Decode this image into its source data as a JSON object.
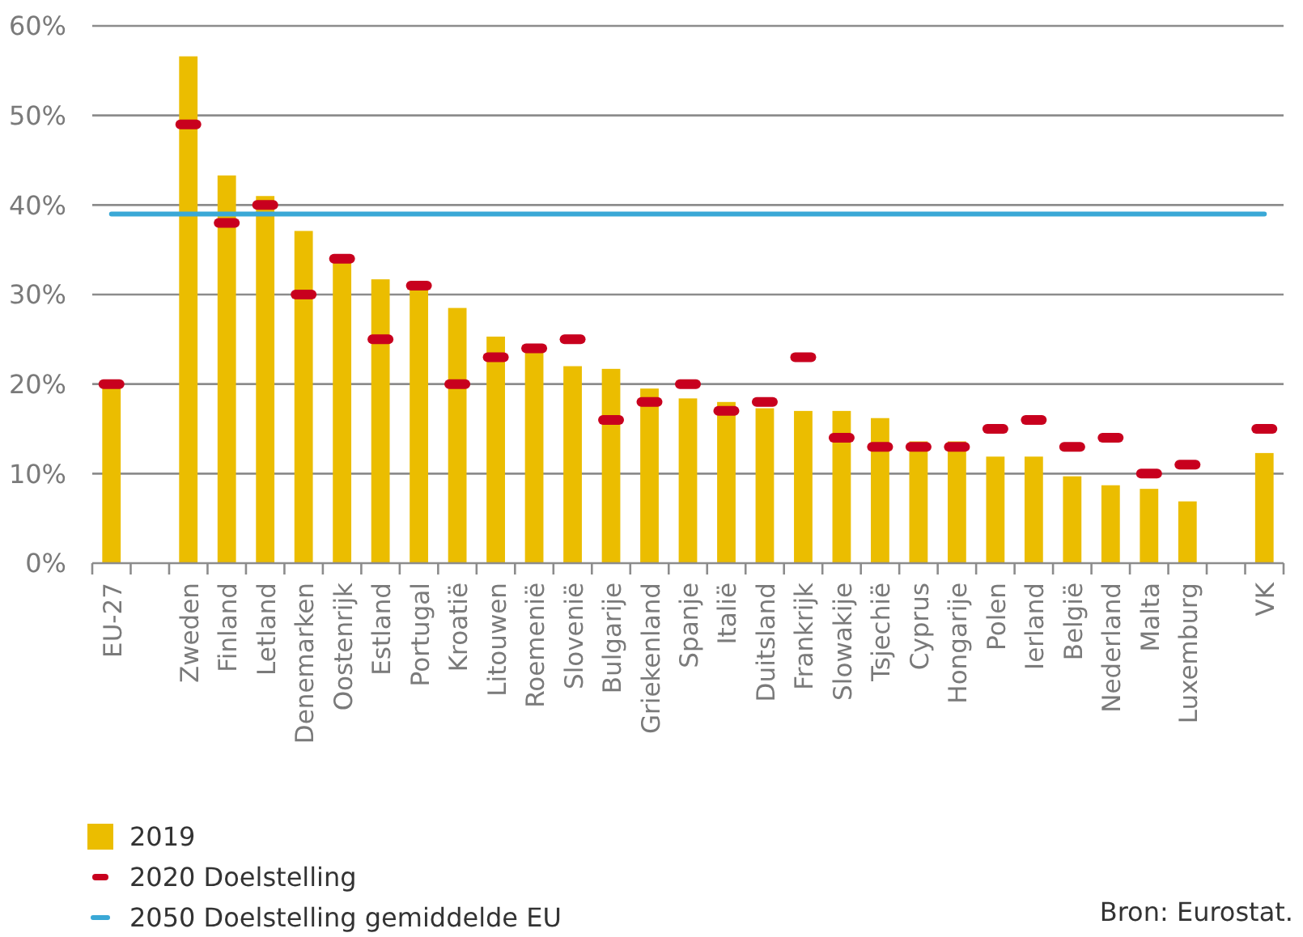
{
  "chart_data": {
    "type": "bar",
    "categories": [
      "EU-27",
      null,
      "Zweden",
      "Finland",
      "Letland",
      "Denemarken",
      "Oostenrijk",
      "Estland",
      "Portugal",
      "Kroatië",
      "Litouwen",
      "Roemenië",
      "Slovenië",
      "Bulgarije",
      "Griekenland",
      "Spanje",
      "Italië",
      "Duitsland",
      "Frankrijk",
      "Slowakije",
      "Tsjechië",
      "Cyprus",
      "Hongarije",
      "Polen",
      "Ierland",
      "België",
      "Nederland",
      "Malta",
      "Luxemburg",
      null,
      "VK"
    ],
    "series": [
      {
        "name": "2019",
        "color": "#ebbd00",
        "values": [
          19.7,
          null,
          56.6,
          43.3,
          41.0,
          37.1,
          33.8,
          31.7,
          30.7,
          28.5,
          25.3,
          24.0,
          22.0,
          21.7,
          19.5,
          18.4,
          18.0,
          17.3,
          17.0,
          17.0,
          16.2,
          13.6,
          13.6,
          11.9,
          11.9,
          9.7,
          8.7,
          8.3,
          6.9,
          null,
          12.3
        ]
      },
      {
        "name": "2020 Doelstelling",
        "type": "scatter",
        "color": "#c8001e",
        "values": [
          20,
          null,
          49,
          38,
          40,
          30,
          34,
          25,
          31,
          20,
          23,
          24,
          25,
          16,
          18,
          20,
          17,
          18,
          23,
          14,
          13,
          13,
          13,
          15,
          16,
          13,
          14,
          10,
          11,
          null,
          15
        ]
      },
      {
        "name": "2050 Doelstelling gemiddelde EU",
        "type": "line",
        "color": "#3aa8d6",
        "values": [
          39,
          39,
          39,
          39,
          39,
          39,
          39,
          39,
          39,
          39,
          39,
          39,
          39,
          39,
          39,
          39,
          39,
          39,
          39,
          39,
          39,
          39,
          39,
          39,
          39,
          39,
          39,
          39,
          39,
          39,
          39
        ]
      }
    ],
    "ylim": [
      0,
      60
    ],
    "yticks": [
      {
        "value": 0,
        "label": "0%"
      },
      {
        "value": 10,
        "label": "10%"
      },
      {
        "value": 20,
        "label": "20%"
      },
      {
        "value": 30,
        "label": "30%"
      },
      {
        "value": 40,
        "label": "40%"
      },
      {
        "value": 50,
        "label": "50%"
      },
      {
        "value": 60,
        "label": "60%"
      }
    ],
    "grid": "y",
    "legend": "bottom left",
    "annotations": [
      "Bron: Eurostat."
    ]
  }
}
